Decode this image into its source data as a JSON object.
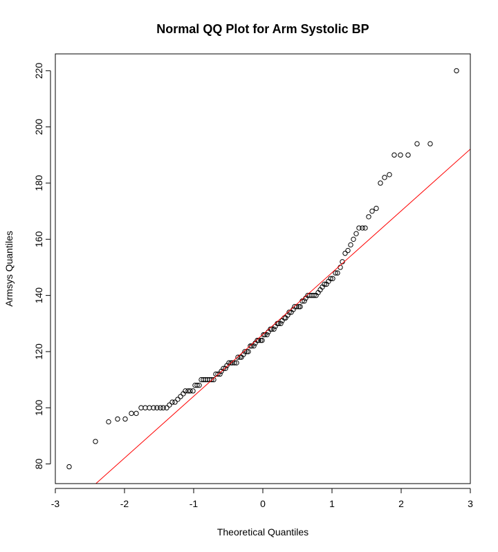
{
  "chart_data": {
    "type": "scatter",
    "title": "Normal QQ Plot for Arm Systolic BP",
    "xlabel": "Theoretical Quantiles",
    "ylabel": "Armsys Quantiles",
    "xlim": [
      -3,
      3
    ],
    "ylim": [
      73,
      226
    ],
    "xticks": [
      -3,
      -2,
      -1,
      0,
      1,
      2,
      3
    ],
    "yticks": [
      80,
      100,
      120,
      140,
      160,
      180,
      200,
      220
    ],
    "grid": false,
    "legend": "none",
    "point_color": "#000000",
    "line_color": "#ff0000",
    "reference_line": {
      "intercept": 126.1,
      "slope": 22.0
    },
    "points": [
      [
        -2.8,
        79
      ],
      [
        -2.42,
        88
      ],
      [
        -2.23,
        95
      ],
      [
        -2.1,
        96
      ],
      [
        -1.99,
        96
      ],
      [
        -1.9,
        98
      ],
      [
        -1.83,
        98
      ],
      [
        -1.76,
        100
      ],
      [
        -1.7,
        100
      ],
      [
        -1.64,
        100
      ],
      [
        -1.58,
        100
      ],
      [
        -1.53,
        100
      ],
      [
        -1.48,
        100
      ],
      [
        -1.44,
        100
      ],
      [
        -1.39,
        100
      ],
      [
        -1.35,
        101
      ],
      [
        -1.31,
        102
      ],
      [
        -1.27,
        102
      ],
      [
        -1.23,
        103
      ],
      [
        -1.19,
        104
      ],
      [
        -1.15,
        105
      ],
      [
        -1.12,
        106
      ],
      [
        -1.08,
        106
      ],
      [
        -1.05,
        106
      ],
      [
        -1.01,
        106
      ],
      [
        -0.98,
        108
      ],
      [
        -0.95,
        108
      ],
      [
        -0.92,
        108
      ],
      [
        -0.89,
        110
      ],
      [
        -0.86,
        110
      ],
      [
        -0.83,
        110
      ],
      [
        -0.8,
        110
      ],
      [
        -0.77,
        110
      ],
      [
        -0.74,
        110
      ],
      [
        -0.71,
        110
      ],
      [
        -0.68,
        112
      ],
      [
        -0.65,
        112
      ],
      [
        -0.62,
        112
      ],
      [
        -0.6,
        113
      ],
      [
        -0.57,
        114
      ],
      [
        -0.54,
        114
      ],
      [
        -0.52,
        115
      ],
      [
        -0.49,
        116
      ],
      [
        -0.46,
        116
      ],
      [
        -0.44,
        116
      ],
      [
        -0.41,
        116
      ],
      [
        -0.38,
        116
      ],
      [
        -0.36,
        118
      ],
      [
        -0.33,
        118
      ],
      [
        -0.31,
        118
      ],
      [
        -0.28,
        119
      ],
      [
        -0.26,
        120
      ],
      [
        -0.23,
        120
      ],
      [
        -0.21,
        120
      ],
      [
        -0.18,
        122
      ],
      [
        -0.16,
        122
      ],
      [
        -0.13,
        122
      ],
      [
        -0.11,
        123
      ],
      [
        -0.08,
        124
      ],
      [
        -0.06,
        124
      ],
      [
        -0.03,
        124
      ],
      [
        -0.01,
        124
      ],
      [
        0.01,
        126
      ],
      [
        0.03,
        126
      ],
      [
        0.06,
        126
      ],
      [
        0.08,
        127
      ],
      [
        0.11,
        128
      ],
      [
        0.13,
        128
      ],
      [
        0.16,
        128
      ],
      [
        0.18,
        129
      ],
      [
        0.21,
        130
      ],
      [
        0.23,
        130
      ],
      [
        0.26,
        130
      ],
      [
        0.28,
        131
      ],
      [
        0.31,
        132
      ],
      [
        0.33,
        132
      ],
      [
        0.36,
        133
      ],
      [
        0.38,
        134
      ],
      [
        0.41,
        134
      ],
      [
        0.44,
        135
      ],
      [
        0.46,
        136
      ],
      [
        0.49,
        136
      ],
      [
        0.52,
        136
      ],
      [
        0.54,
        136
      ],
      [
        0.57,
        138
      ],
      [
        0.6,
        138
      ],
      [
        0.62,
        139
      ],
      [
        0.65,
        140
      ],
      [
        0.68,
        140
      ],
      [
        0.71,
        140
      ],
      [
        0.74,
        140
      ],
      [
        0.77,
        140
      ],
      [
        0.8,
        141
      ],
      [
        0.83,
        142
      ],
      [
        0.86,
        143
      ],
      [
        0.89,
        144
      ],
      [
        0.92,
        144
      ],
      [
        0.95,
        145
      ],
      [
        0.98,
        146
      ],
      [
        1.01,
        146
      ],
      [
        1.05,
        148
      ],
      [
        1.08,
        148
      ],
      [
        1.12,
        150
      ],
      [
        1.15,
        152
      ],
      [
        1.19,
        155
      ],
      [
        1.23,
        156
      ],
      [
        1.27,
        158
      ],
      [
        1.31,
        160
      ],
      [
        1.35,
        162
      ],
      [
        1.39,
        164
      ],
      [
        1.44,
        164
      ],
      [
        1.48,
        164
      ],
      [
        1.53,
        168
      ],
      [
        1.58,
        170
      ],
      [
        1.64,
        171
      ],
      [
        1.7,
        180
      ],
      [
        1.76,
        182
      ],
      [
        1.83,
        183
      ],
      [
        1.9,
        190
      ],
      [
        1.99,
        190
      ],
      [
        2.1,
        190
      ],
      [
        2.23,
        194
      ],
      [
        2.42,
        194
      ],
      [
        2.8,
        220
      ]
    ]
  }
}
